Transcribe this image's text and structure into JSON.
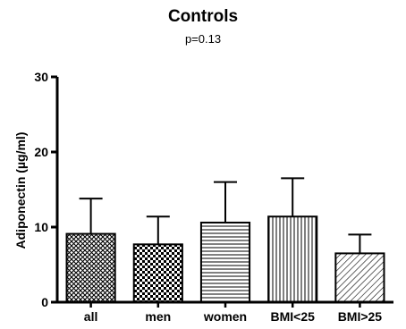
{
  "chart_data": {
    "type": "bar",
    "title": "Controls",
    "subtitle": "p=0.13",
    "ylabel": "Adiponectin (µg/ml)",
    "categories": [
      "all",
      "men",
      "women",
      "BMI<25",
      "BMI>25"
    ],
    "values": [
      9.1,
      7.7,
      10.6,
      11.4,
      6.5
    ],
    "errors": [
      4.7,
      3.7,
      5.4,
      5.1,
      2.5
    ],
    "ylim": [
      0,
      30
    ],
    "yticks": [
      "0",
      "10",
      "20",
      "30"
    ],
    "patterns": [
      "crosshatch",
      "checker",
      "horizontal-lines",
      "vertical-lines",
      "diagonal-lines"
    ],
    "grid": false,
    "legend": "none",
    "colors": {
      "bar_stroke": "#000000",
      "bar_pattern": "#000000",
      "background": "#ffffff"
    }
  }
}
